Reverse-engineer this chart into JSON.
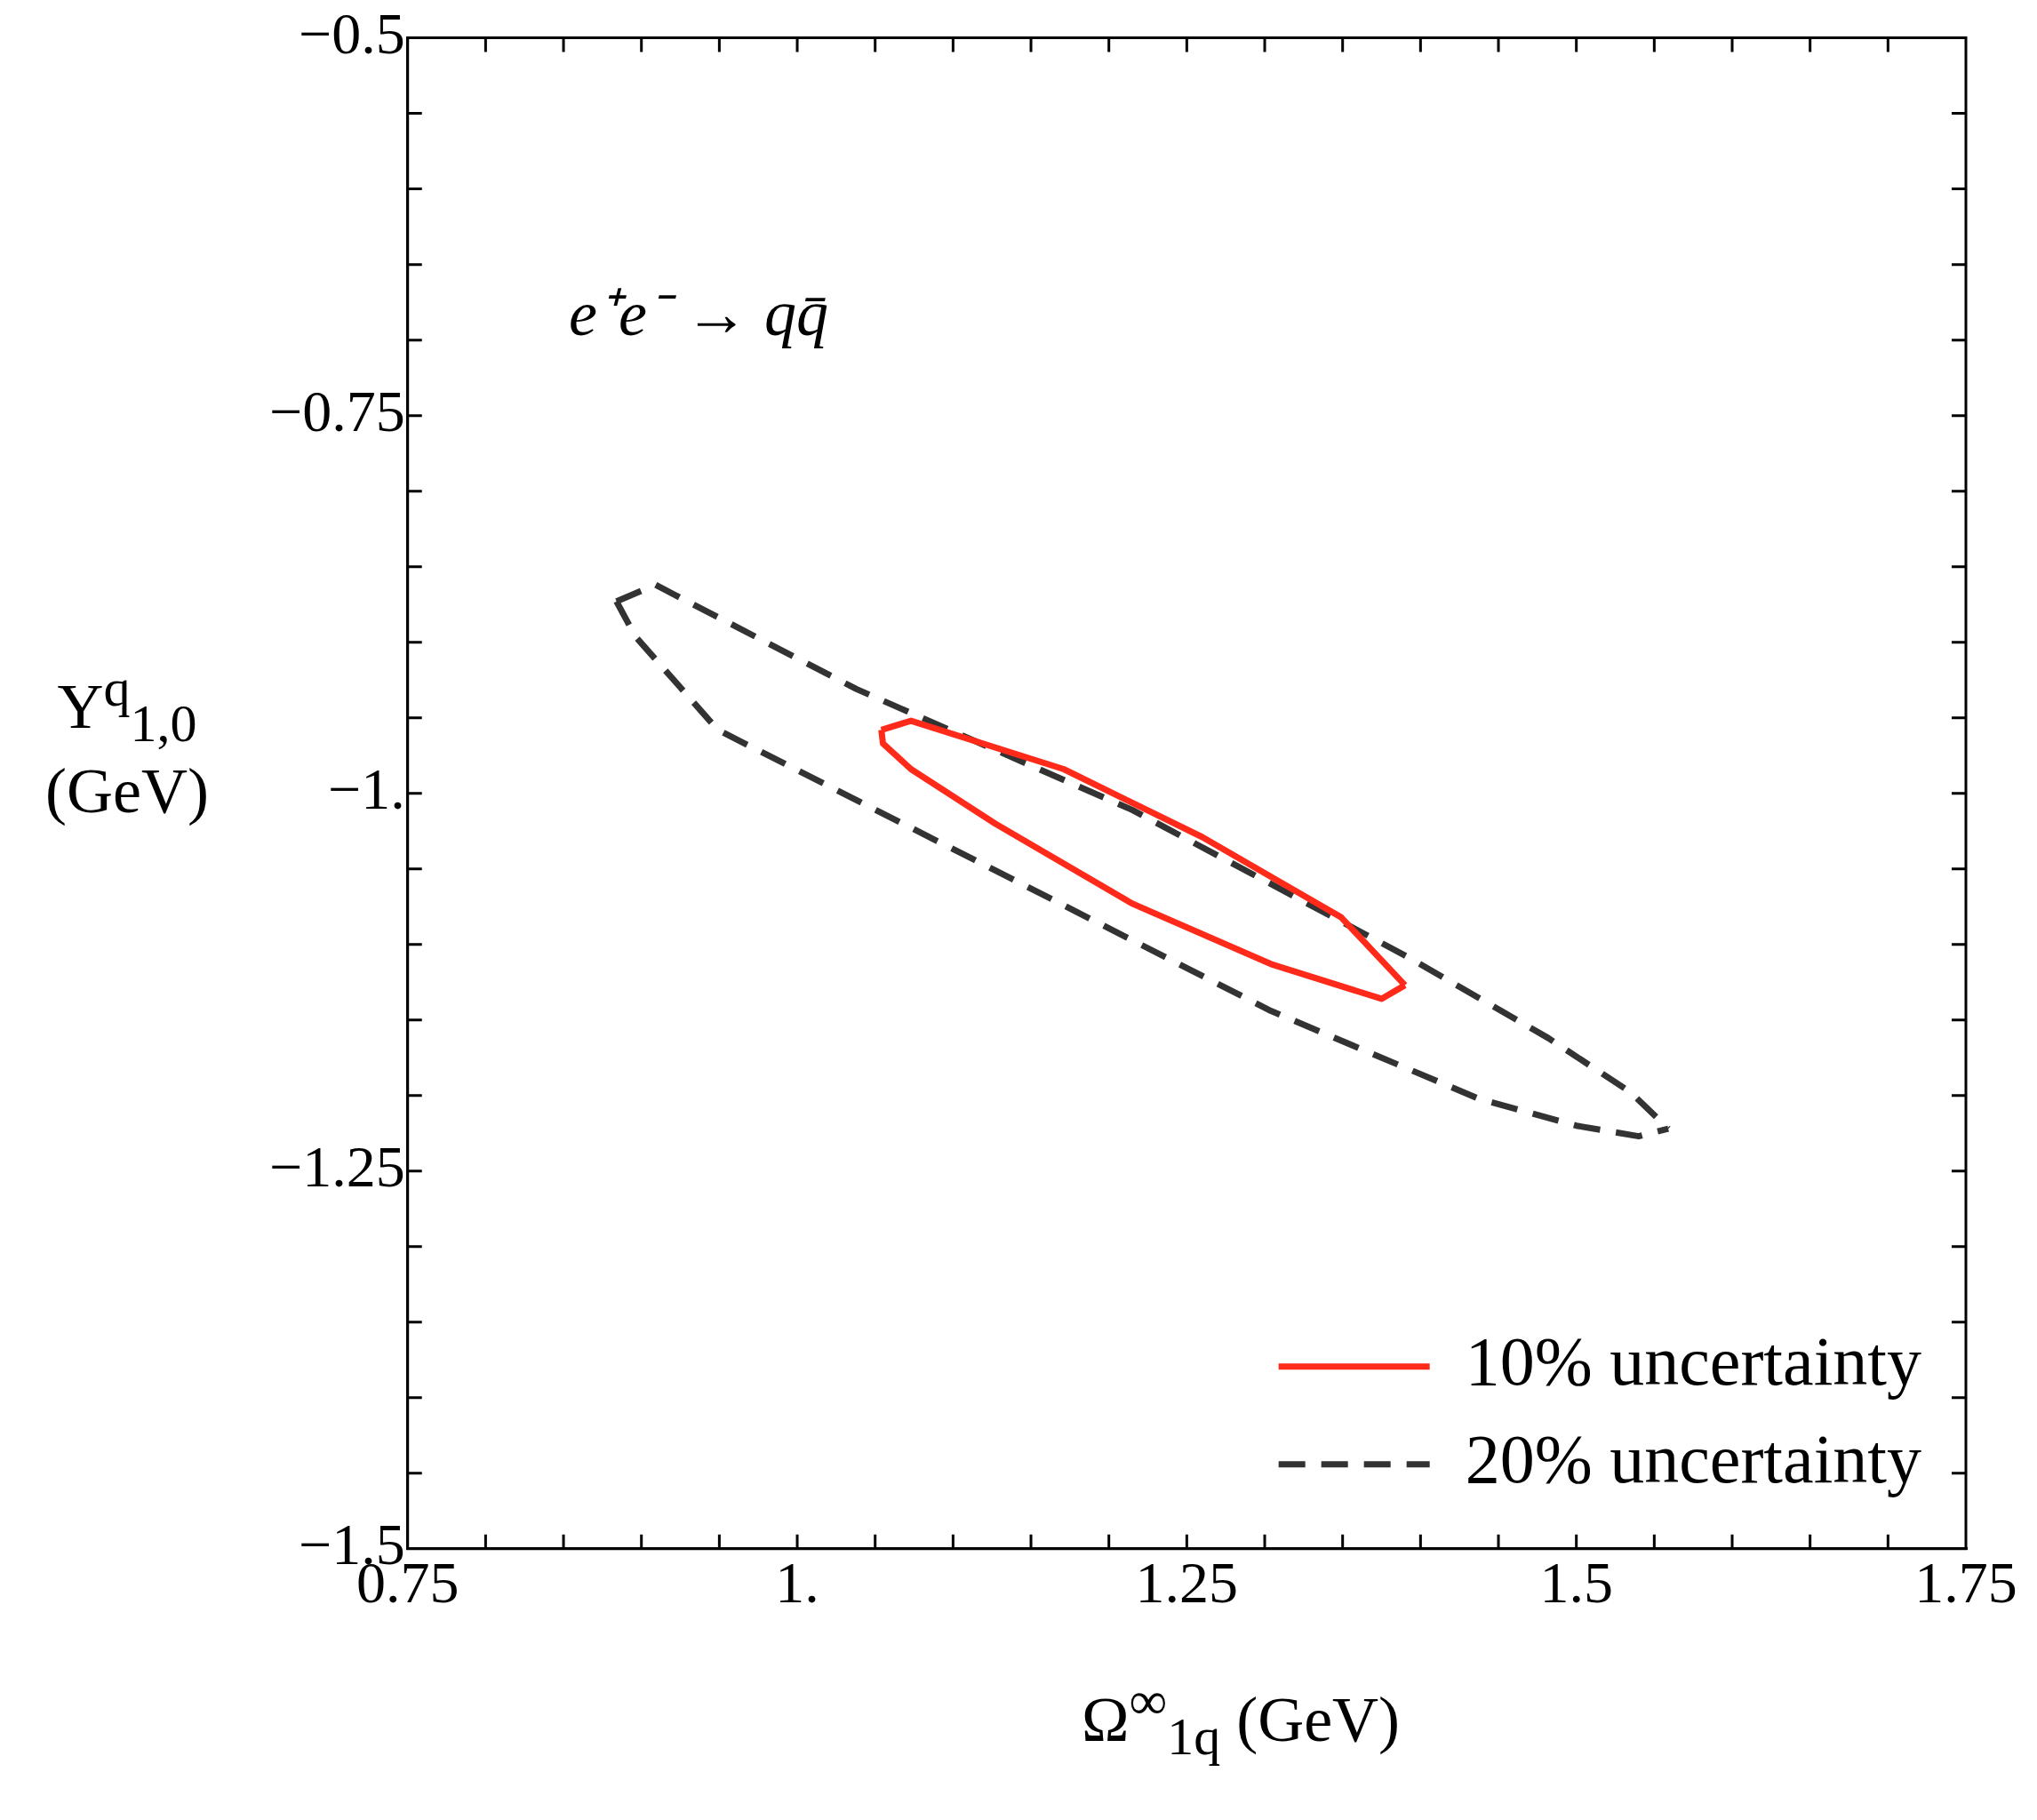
{
  "chart_data": {
    "type": "line",
    "xlabel": "Ω$^{∞}$$_{1q}$ (GeV)",
    "ylabel": "Υ$^{q}$$_{1,0}$ (GeV)",
    "annotations": [
      "e⁺e⁻ → qq̄"
    ],
    "xlim": [
      0.75,
      1.75
    ],
    "ylim": [
      -1.5,
      -0.5
    ],
    "xticks": [
      {
        "value": 0.75,
        "label": "0.75"
      },
      {
        "value": 0.8,
        "label": null
      },
      {
        "value": 0.85,
        "label": null
      },
      {
        "value": 0.9,
        "label": null
      },
      {
        "value": 0.95,
        "label": null
      },
      {
        "value": 1,
        "label": "1."
      },
      {
        "value": 1.05,
        "label": null
      },
      {
        "value": 1.1,
        "label": null
      },
      {
        "value": 1.15,
        "label": null
      },
      {
        "value": 1.2,
        "label": null
      },
      {
        "value": 1.25,
        "label": "1.25"
      },
      {
        "value": 1.3,
        "label": null
      },
      {
        "value": 1.35,
        "label": null
      },
      {
        "value": 1.4,
        "label": null
      },
      {
        "value": 1.45,
        "label": null
      },
      {
        "value": 1.5,
        "label": "1.5"
      },
      {
        "value": 1.55,
        "label": null
      },
      {
        "value": 1.6,
        "label": null
      },
      {
        "value": 1.65,
        "label": null
      },
      {
        "value": 1.7,
        "label": null
      },
      {
        "value": 1.75,
        "label": "1.75"
      }
    ],
    "yticks": [
      {
        "value": -1.5,
        "label": "−1.5"
      },
      {
        "value": -1.45,
        "label": null
      },
      {
        "value": -1.4,
        "label": null
      },
      {
        "value": -1.35,
        "label": null
      },
      {
        "value": -1.3,
        "label": null
      },
      {
        "value": -1.25,
        "label": "−1.25"
      },
      {
        "value": -1.2,
        "label": null
      },
      {
        "value": -1.15,
        "label": null
      },
      {
        "value": -1.1,
        "label": null
      },
      {
        "value": -1.05,
        "label": null
      },
      {
        "value": -1,
        "label": "−1."
      },
      {
        "value": -0.95,
        "label": null
      },
      {
        "value": -0.9,
        "label": null
      },
      {
        "value": -0.85,
        "label": null
      },
      {
        "value": -0.8,
        "label": null
      },
      {
        "value": -0.75,
        "label": "−0.75"
      },
      {
        "value": -0.7,
        "label": null
      },
      {
        "value": -0.65,
        "label": null
      },
      {
        "value": -0.6,
        "label": null
      },
      {
        "value": -0.55,
        "label": null
      },
      {
        "value": -0.5,
        "label": "−0.5"
      }
    ],
    "grid": false,
    "legend": "bottom right",
    "marker": "none",
    "series": [
      {
        "name": "10% uncertainty",
        "color": "#ff2a1a",
        "line_style": "solid",
        "x": [
          1.054,
          1.073,
          1.171,
          1.26,
          1.349,
          1.39
        ],
        "values": [
          -0.958,
          -0.952,
          -0.984,
          -1.029,
          -1.082,
          -1.127
        ]
      },
      {
        "color": "#ff2a1a",
        "line_style": "solid",
        "x": [
          1.054,
          1.055,
          1.073,
          1.127,
          1.215,
          1.304,
          1.375,
          1.39
        ],
        "values": [
          -0.958,
          -0.967,
          -0.984,
          -1.02,
          -1.073,
          -1.113,
          -1.136,
          -1.127
        ]
      },
      {
        "name": "20% uncertainty",
        "color": "#333333",
        "line_style": "dashed",
        "x": [
          0.884,
          0.909,
          1.038,
          1.215,
          1.393,
          1.482,
          1.535,
          1.559
        ],
        "values": [
          -0.873,
          -0.862,
          -0.931,
          -1.011,
          -1.109,
          -1.162,
          -1.198,
          -1.222
        ]
      },
      {
        "color": "#333333",
        "line_style": "dashed",
        "x": [
          0.884,
          0.896,
          0.949,
          1.127,
          1.304,
          1.437,
          1.5,
          1.54,
          1.559
        ],
        "values": [
          -0.873,
          -0.896,
          -0.958,
          -1.051,
          -1.144,
          -1.202,
          -1.22,
          -1.227,
          -1.222
        ]
      }
    ]
  }
}
